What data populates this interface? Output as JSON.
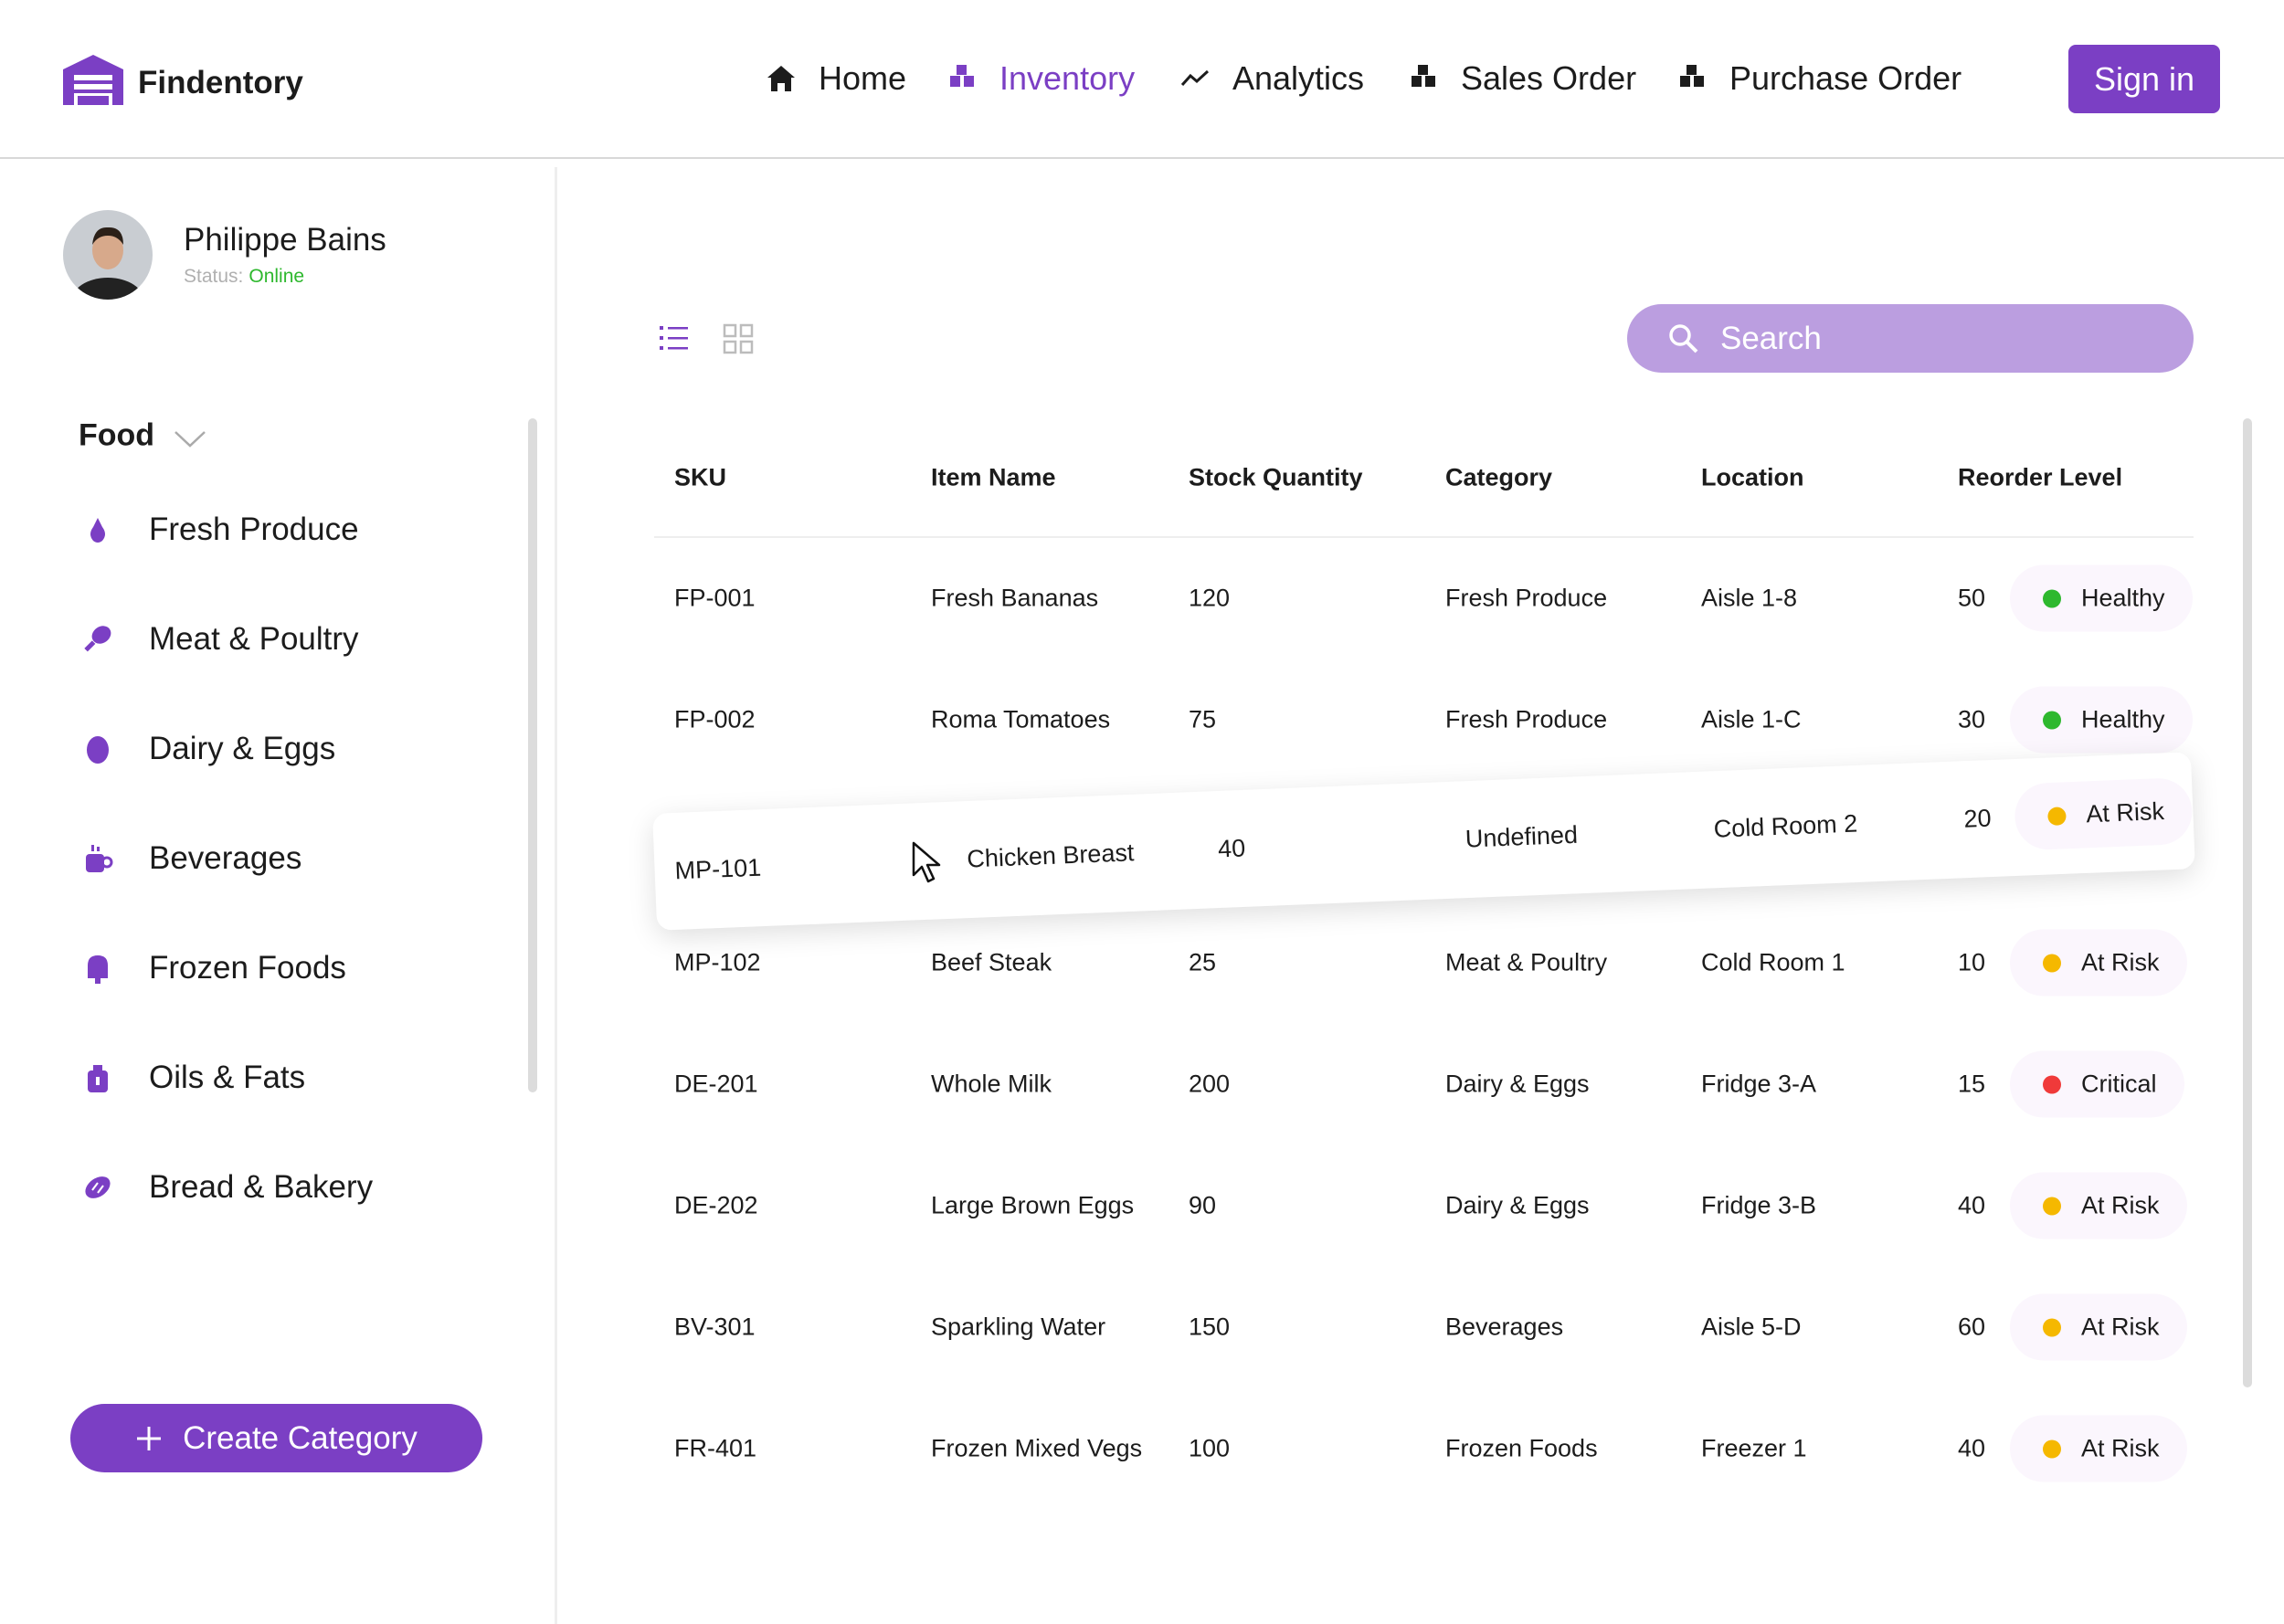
{
  "header": {
    "brand": "Findentory",
    "nav": [
      {
        "label": "Home",
        "active": false
      },
      {
        "label": "Inventory",
        "active": true
      },
      {
        "label": "Analytics",
        "active": false
      },
      {
        "label": "Sales Order",
        "active": false
      },
      {
        "label": "Purchase Order",
        "active": false
      }
    ],
    "sign_in": "Sign in"
  },
  "sidebar": {
    "user": {
      "name": "Philippe Bains",
      "status_label": "Status:",
      "status": "Online"
    },
    "group": "Food",
    "categories": [
      "Fresh Produce",
      "Meat & Poultry",
      "Dairy & Eggs",
      "Beverages",
      "Frozen Foods",
      "Oils & Fats",
      "Bread & Bakery"
    ],
    "create_button": "Create Category"
  },
  "search": {
    "placeholder": "Search"
  },
  "table": {
    "columns": [
      "SKU",
      "Item Name",
      "Stock Quantity",
      "Category",
      "Location",
      "Reorder Level"
    ],
    "rows": [
      {
        "sku": "FP-001",
        "item": "Fresh Bananas",
        "stock": "120",
        "category": "Fresh Produce",
        "location": "Aisle 1-8",
        "reorder": "50",
        "status": "Healthy",
        "status_color": "#2eb82e"
      },
      {
        "sku": "FP-002",
        "item": "Roma Tomatoes",
        "stock": "75",
        "category": "Fresh Produce",
        "location": "Aisle 1-C",
        "reorder": "30",
        "status": "Healthy",
        "status_color": "#2eb82e"
      },
      {
        "sku": "MP-101",
        "item": "Chicken Breast",
        "stock": "40",
        "category": "Undefined",
        "location": "Cold Room 2",
        "reorder": "20",
        "status": "At Risk",
        "status_color": "#f5b800",
        "dragging": true
      },
      {
        "sku": "MP-102",
        "item": "Beef Steak",
        "stock": "25",
        "category": "Meat & Poultry",
        "location": "Cold Room 1",
        "reorder": "10",
        "status": "At Risk",
        "status_color": "#f5b800"
      },
      {
        "sku": "DE-201",
        "item": "Whole Milk",
        "stock": "200",
        "category": "Dairy & Eggs",
        "location": "Fridge 3-A",
        "reorder": "15",
        "status": "Critical",
        "status_color": "#f03a3a"
      },
      {
        "sku": "DE-202",
        "item": "Large Brown Eggs",
        "stock": "90",
        "category": "Dairy & Eggs",
        "location": "Fridge 3-B",
        "reorder": "40",
        "status": "At Risk",
        "status_color": "#f5b800"
      },
      {
        "sku": "BV-301",
        "item": "Sparkling Water",
        "stock": "150",
        "category": "Beverages",
        "location": "Aisle 5-D",
        "reorder": "60",
        "status": "At Risk",
        "status_color": "#f5b800"
      },
      {
        "sku": "FR-401",
        "item": "Frozen Mixed Vegs",
        "stock": "100",
        "category": "Frozen Foods",
        "location": "Freezer 1",
        "reorder": "40",
        "status": "At Risk",
        "status_color": "#f5b800"
      }
    ]
  }
}
